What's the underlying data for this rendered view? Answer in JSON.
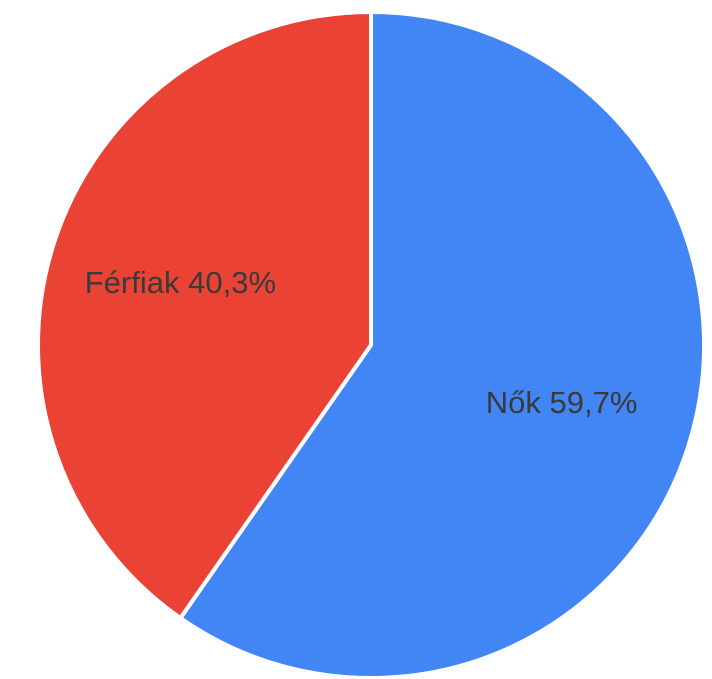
{
  "chart_data": {
    "type": "pie",
    "categories": [
      "Nők",
      "Férfiak"
    ],
    "values": [
      59.7,
      40.3
    ],
    "value_labels": [
      "59,7%",
      "40,3%"
    ],
    "colors": [
      "#4285f4",
      "#ea4335"
    ]
  }
}
